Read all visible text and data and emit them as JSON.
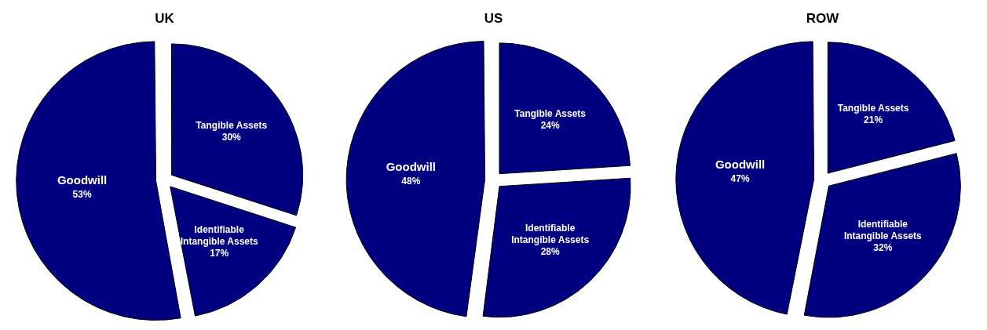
{
  "chart_data": [
    {
      "type": "pie",
      "title": "UK",
      "categories": [
        "Tangible Assets",
        "Identifiable Intangible Assets",
        "Goodwill"
      ],
      "values": [
        30,
        17,
        53
      ],
      "value_labels": [
        "30%",
        "17%",
        "53%"
      ],
      "colors": [
        "#000080",
        "#000080",
        "#000080"
      ],
      "legend": false
    },
    {
      "type": "pie",
      "title": "US",
      "categories": [
        "Tangible Assets",
        "Identifiable Intangible Assets",
        "Goodwill"
      ],
      "values": [
        24,
        28,
        48
      ],
      "value_labels": [
        "24%",
        "28%",
        "48%"
      ],
      "colors": [
        "#000080",
        "#000080",
        "#000080"
      ],
      "legend": false
    },
    {
      "type": "pie",
      "title": "ROW",
      "categories": [
        "Tangible Assets",
        "Identifiable Intangible Assets",
        "Goodwill"
      ],
      "values": [
        21,
        32,
        47
      ],
      "value_labels": [
        "21%",
        "32%",
        "47%"
      ],
      "colors": [
        "#000080",
        "#000080",
        "#000080"
      ],
      "legend": false
    }
  ]
}
